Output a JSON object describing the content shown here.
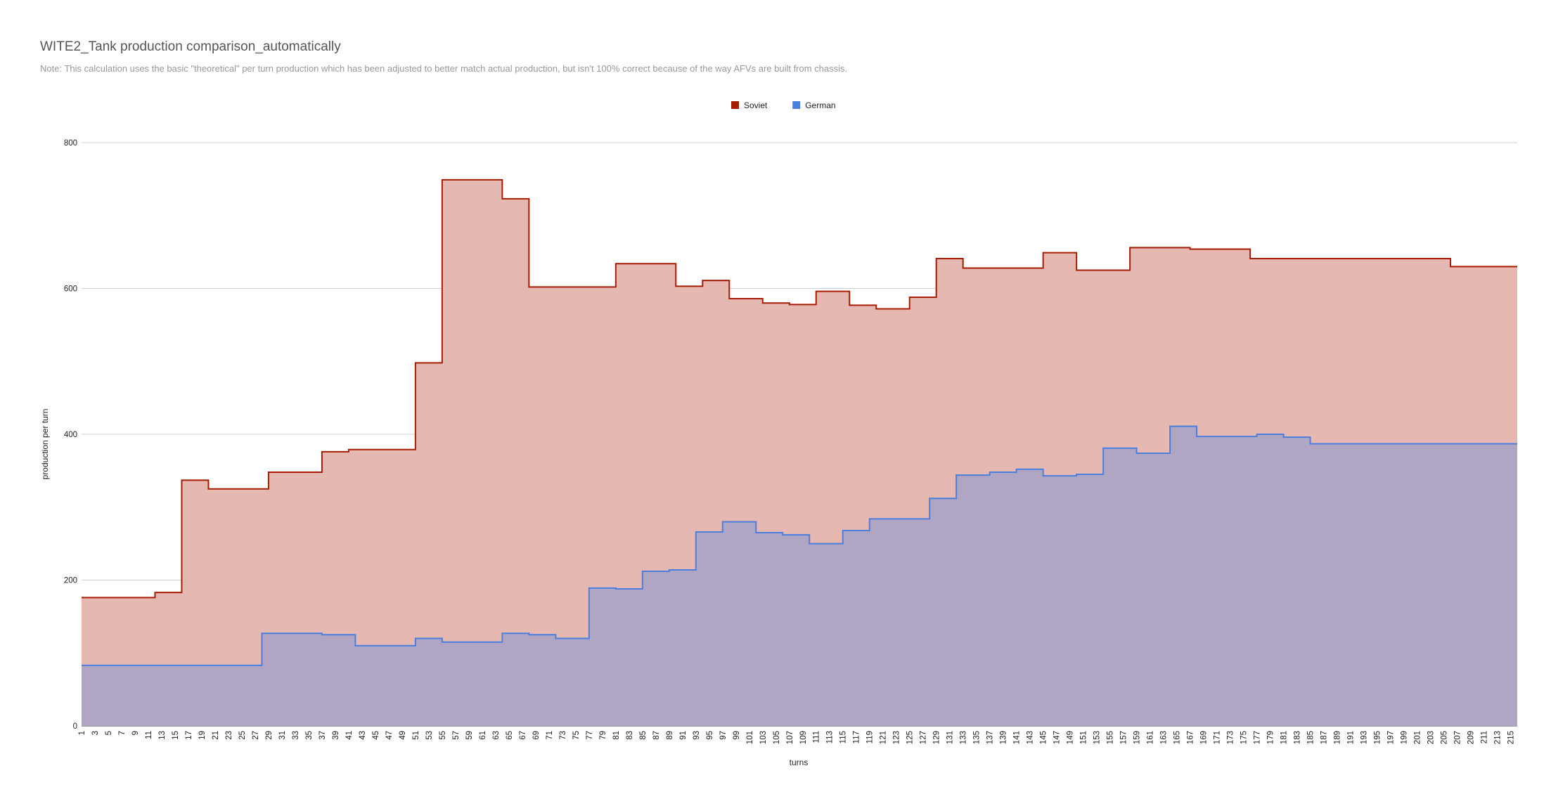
{
  "chart_data": {
    "type": "area",
    "title": "WITE2_Tank production comparison_automatically",
    "subtitle": "Note: This calculation uses the basic \"theoretical\" per turn production which has been adjusted to better match actual production, but isn't 100% correct because of the way AFVs are built from chassis.",
    "xlabel": "turns",
    "ylabel": "production per turn",
    "ylim": [
      0,
      800
    ],
    "yticks": [
      0,
      200,
      400,
      600,
      800
    ],
    "grid": true,
    "legend_position": "top",
    "stepped": true,
    "x_range": [
      1,
      216
    ],
    "x_ticks": [
      1,
      3,
      5,
      7,
      9,
      11,
      13,
      15,
      17,
      19,
      21,
      23,
      25,
      27,
      29,
      31,
      33,
      35,
      37,
      39,
      41,
      43,
      45,
      47,
      49,
      51,
      53,
      55,
      57,
      59,
      61,
      63,
      65,
      67,
      69,
      71,
      73,
      75,
      77,
      79,
      81,
      83,
      85,
      87,
      89,
      91,
      93,
      95,
      97,
      99,
      101,
      103,
      105,
      107,
      109,
      111,
      113,
      115,
      117,
      119,
      121,
      123,
      125,
      127,
      129,
      131,
      133,
      135,
      137,
      139,
      141,
      143,
      145,
      147,
      149,
      151,
      153,
      155,
      157,
      159,
      161,
      163,
      165,
      167,
      169,
      171,
      173,
      175,
      177,
      179,
      181,
      183,
      185,
      187,
      189,
      191,
      193,
      195,
      197,
      199,
      201,
      203,
      205,
      207,
      209,
      211,
      213,
      215
    ],
    "series": [
      {
        "name": "Soviet",
        "color": "#a61c00",
        "fill": "#e6b8b2",
        "points": [
          [
            1,
            176
          ],
          [
            12,
            183
          ],
          [
            16,
            337
          ],
          [
            20,
            325
          ],
          [
            29,
            348
          ],
          [
            37,
            376
          ],
          [
            41,
            379
          ],
          [
            51,
            498
          ],
          [
            55,
            749
          ],
          [
            64,
            723
          ],
          [
            68,
            602
          ],
          [
            81,
            634
          ],
          [
            90,
            603
          ],
          [
            94,
            611
          ],
          [
            98,
            586
          ],
          [
            103,
            580
          ],
          [
            107,
            578
          ],
          [
            111,
            596
          ],
          [
            116,
            577
          ],
          [
            120,
            572
          ],
          [
            125,
            588
          ],
          [
            129,
            641
          ],
          [
            133,
            628
          ],
          [
            145,
            649
          ],
          [
            150,
            625
          ],
          [
            158,
            656
          ],
          [
            167,
            654
          ],
          [
            176,
            641
          ],
          [
            206,
            630
          ]
        ]
      },
      {
        "name": "German",
        "color": "#4a7fe0",
        "fill": "#b0a6c3",
        "points": [
          [
            1,
            83
          ],
          [
            28,
            127
          ],
          [
            37,
            125
          ],
          [
            42,
            110
          ],
          [
            51,
            120
          ],
          [
            55,
            115
          ],
          [
            64,
            127
          ],
          [
            68,
            125
          ],
          [
            72,
            120
          ],
          [
            77,
            189
          ],
          [
            81,
            188
          ],
          [
            85,
            212
          ],
          [
            89,
            214
          ],
          [
            93,
            266
          ],
          [
            97,
            280
          ],
          [
            102,
            265
          ],
          [
            106,
            262
          ],
          [
            110,
            250
          ],
          [
            115,
            268
          ],
          [
            119,
            284
          ],
          [
            128,
            312
          ],
          [
            132,
            344
          ],
          [
            137,
            348
          ],
          [
            141,
            352
          ],
          [
            145,
            343
          ],
          [
            150,
            345
          ],
          [
            154,
            381
          ],
          [
            159,
            374
          ],
          [
            164,
            411
          ],
          [
            168,
            397
          ],
          [
            177,
            400
          ],
          [
            181,
            396
          ],
          [
            185,
            387
          ]
        ]
      }
    ]
  }
}
